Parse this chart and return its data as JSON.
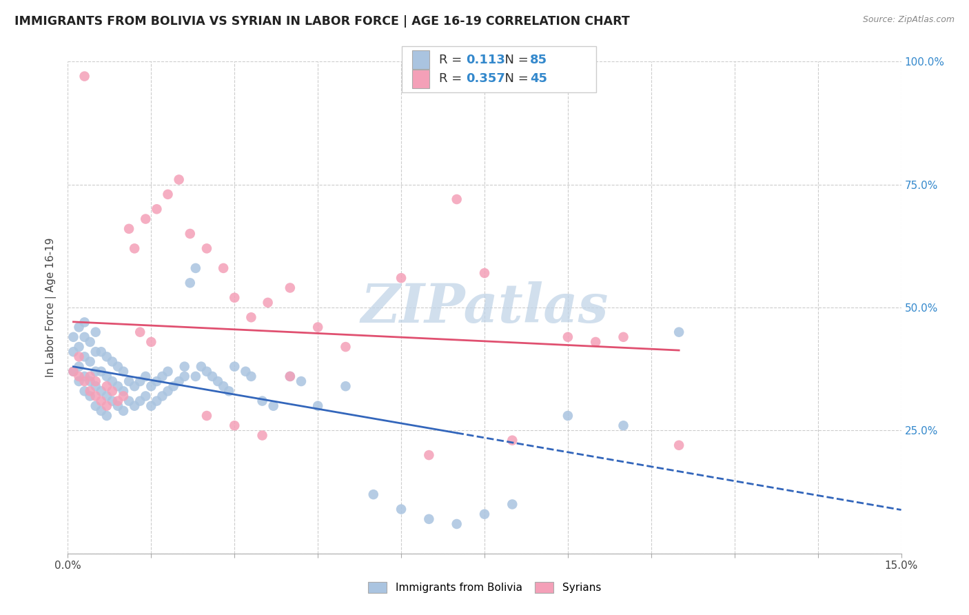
{
  "title": "IMMIGRANTS FROM BOLIVIA VS SYRIAN IN LABOR FORCE | AGE 16-19 CORRELATION CHART",
  "source": "Source: ZipAtlas.com",
  "ylabel": "In Labor Force | Age 16-19",
  "xlim": [
    0.0,
    0.15
  ],
  "ylim": [
    0.0,
    1.0
  ],
  "bolivia_color": "#aac4e0",
  "syria_color": "#f4a0b8",
  "bolivia_line_color": "#3366bb",
  "syria_line_color": "#e05070",
  "bolivia_R": "0.113",
  "bolivia_N": "85",
  "syria_R": "0.357",
  "syria_N": "45",
  "watermark": "ZIPatlas",
  "watermark_color_r": 190,
  "watermark_color_g": 210,
  "watermark_color_b": 230,
  "legend_label_bolivia": "Immigrants from Bolivia",
  "legend_label_syria": "Syrians",
  "bolivia_scatter_x": [
    0.001,
    0.001,
    0.001,
    0.002,
    0.002,
    0.002,
    0.002,
    0.003,
    0.003,
    0.003,
    0.003,
    0.003,
    0.004,
    0.004,
    0.004,
    0.004,
    0.005,
    0.005,
    0.005,
    0.005,
    0.005,
    0.006,
    0.006,
    0.006,
    0.006,
    0.007,
    0.007,
    0.007,
    0.007,
    0.008,
    0.008,
    0.008,
    0.009,
    0.009,
    0.009,
    0.01,
    0.01,
    0.01,
    0.011,
    0.011,
    0.012,
    0.012,
    0.013,
    0.013,
    0.014,
    0.014,
    0.015,
    0.015,
    0.016,
    0.016,
    0.017,
    0.017,
    0.018,
    0.018,
    0.019,
    0.02,
    0.021,
    0.021,
    0.022,
    0.023,
    0.023,
    0.024,
    0.025,
    0.026,
    0.027,
    0.028,
    0.029,
    0.03,
    0.032,
    0.033,
    0.035,
    0.037,
    0.04,
    0.042,
    0.045,
    0.05,
    0.055,
    0.06,
    0.065,
    0.07,
    0.075,
    0.08,
    0.09,
    0.1,
    0.11
  ],
  "bolivia_scatter_y": [
    0.37,
    0.41,
    0.44,
    0.35,
    0.38,
    0.42,
    0.46,
    0.33,
    0.36,
    0.4,
    0.44,
    0.47,
    0.32,
    0.35,
    0.39,
    0.43,
    0.3,
    0.34,
    0.37,
    0.41,
    0.45,
    0.29,
    0.33,
    0.37,
    0.41,
    0.28,
    0.32,
    0.36,
    0.4,
    0.31,
    0.35,
    0.39,
    0.3,
    0.34,
    0.38,
    0.29,
    0.33,
    0.37,
    0.31,
    0.35,
    0.3,
    0.34,
    0.31,
    0.35,
    0.32,
    0.36,
    0.3,
    0.34,
    0.31,
    0.35,
    0.32,
    0.36,
    0.33,
    0.37,
    0.34,
    0.35,
    0.36,
    0.38,
    0.55,
    0.58,
    0.36,
    0.38,
    0.37,
    0.36,
    0.35,
    0.34,
    0.33,
    0.38,
    0.37,
    0.36,
    0.31,
    0.3,
    0.36,
    0.35,
    0.3,
    0.34,
    0.12,
    0.09,
    0.07,
    0.06,
    0.08,
    0.1,
    0.28,
    0.26,
    0.45
  ],
  "syria_scatter_x": [
    0.001,
    0.002,
    0.002,
    0.003,
    0.004,
    0.004,
    0.005,
    0.005,
    0.006,
    0.007,
    0.007,
    0.008,
    0.009,
    0.01,
    0.011,
    0.012,
    0.013,
    0.014,
    0.015,
    0.016,
    0.018,
    0.02,
    0.022,
    0.025,
    0.028,
    0.03,
    0.033,
    0.036,
    0.04,
    0.045,
    0.05,
    0.06,
    0.065,
    0.07,
    0.075,
    0.08,
    0.09,
    0.095,
    0.1,
    0.11,
    0.025,
    0.03,
    0.035,
    0.04,
    0.003
  ],
  "syria_scatter_y": [
    0.37,
    0.36,
    0.4,
    0.35,
    0.33,
    0.36,
    0.32,
    0.35,
    0.31,
    0.3,
    0.34,
    0.33,
    0.31,
    0.32,
    0.66,
    0.62,
    0.45,
    0.68,
    0.43,
    0.7,
    0.73,
    0.76,
    0.65,
    0.62,
    0.58,
    0.52,
    0.48,
    0.51,
    0.54,
    0.46,
    0.42,
    0.56,
    0.2,
    0.72,
    0.57,
    0.23,
    0.44,
    0.43,
    0.44,
    0.22,
    0.28,
    0.26,
    0.24,
    0.36,
    0.97
  ]
}
